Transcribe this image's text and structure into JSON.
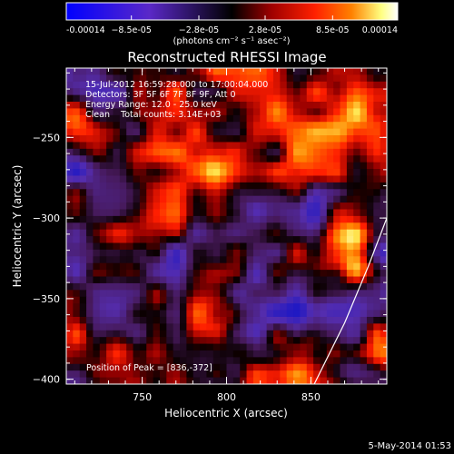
{
  "chart_data": {
    "type": "heatmap",
    "title": "Reconstructed RHESSI Image",
    "xlabel": "Heliocentric X (arcsec)",
    "ylabel": "Heliocentric Y (arcsec)",
    "xlim": [
      705,
      895
    ],
    "ylim": [
      -403,
      -207
    ],
    "x_ticks": [
      750,
      800,
      850
    ],
    "y_ticks": [
      -250,
      -300,
      -350,
      -400
    ],
    "colorbar": {
      "range": [
        -0.00014,
        0.00014
      ],
      "tick_values": [
        -0.00014,
        -8.5e-05,
        -2.8e-05,
        2.8e-05,
        8.5e-05,
        0.00014
      ],
      "tick_labels": [
        "-0.00014",
        "−8.5e-05",
        "−2.8e-05",
        "2.8e-05",
        "8.5e-05",
        "0.00014"
      ],
      "units_label": "(photons cm⁻² s⁻¹ asec⁻²)",
      "colors": [
        "#0000ff",
        "#5a28c8",
        "#000000",
        "#a00000",
        "#ff0000",
        "#ff8000",
        "#ffff80",
        "#ffffff"
      ]
    },
    "annotations": [
      "15-Jul-2012 16:59:28.000 to 17:00:04.000",
      "Detectors: 3F 5F 6F 7F 8F 9F, Att 0",
      "Energy Range: 12.0 - 25.0 keV",
      "Clean    Total counts: 3.14E+03"
    ],
    "peak_label": "Position of Peak = [836,-372]",
    "peak_position": [
      836,
      -372
    ],
    "limb_curve": [
      [
        852,
        -403
      ],
      [
        870,
        -365
      ],
      [
        884,
        -330
      ],
      [
        895,
        -300
      ]
    ],
    "footer_date": "5-May-2014 01:53",
    "grid": false,
    "legend": "none"
  }
}
